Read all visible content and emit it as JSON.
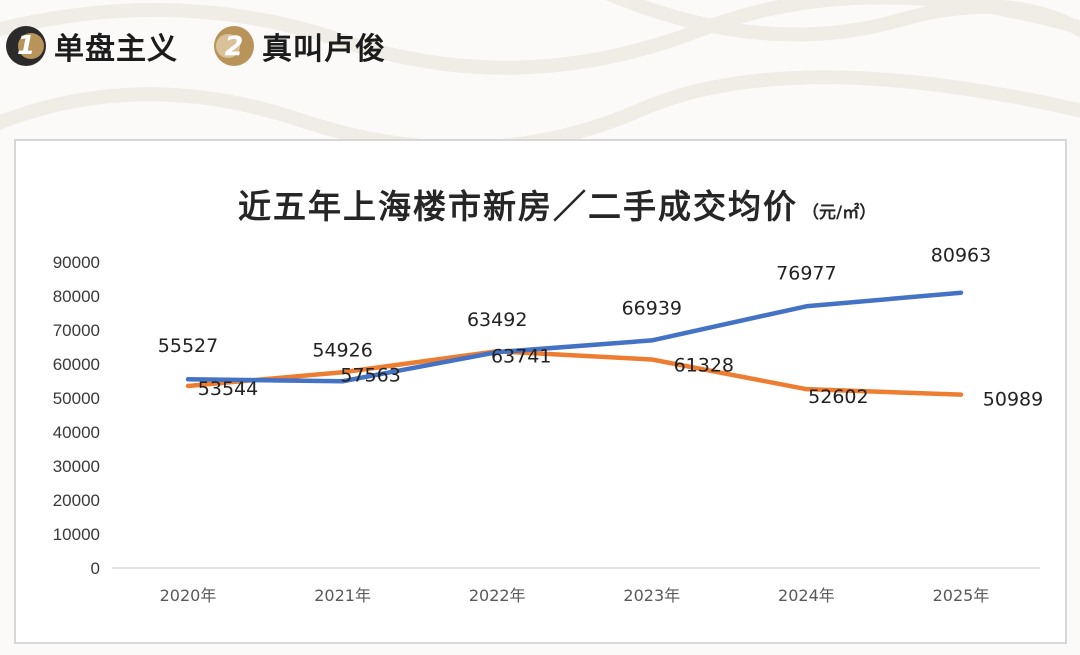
{
  "header": {
    "tags": [
      {
        "number": "1",
        "label": "单盘主义"
      },
      {
        "number": "2",
        "label": "真叫卢俊"
      }
    ]
  },
  "colors": {
    "new_house": "#4472c4",
    "second_hand": "#ed7d31",
    "highlight": "#c00000",
    "badge_dark": "#2b2b2b",
    "badge_gold": "#b8935a"
  },
  "chart_data": {
    "type": "line",
    "title": "近五年上海楼市新房／二手成交均价",
    "unit": "（元/㎡）",
    "categories": [
      "2020年",
      "2021年",
      "2022年",
      "2023年",
      "2024年",
      "2025年"
    ],
    "ylim": [
      0,
      90000
    ],
    "yticks": [
      "0",
      "10000",
      "20000",
      "30000",
      "40000",
      "50000",
      "60000",
      "70000",
      "80000",
      "90000"
    ],
    "grid": false,
    "legend": "none",
    "series": [
      {
        "name": "新房",
        "values": [
          55527,
          54926,
          63492,
          66939,
          76977,
          80963
        ]
      },
      {
        "name": "二手",
        "values": [
          53544,
          57563,
          63741,
          61328,
          52602,
          50989
        ]
      }
    ],
    "highlight_label": "80963"
  }
}
